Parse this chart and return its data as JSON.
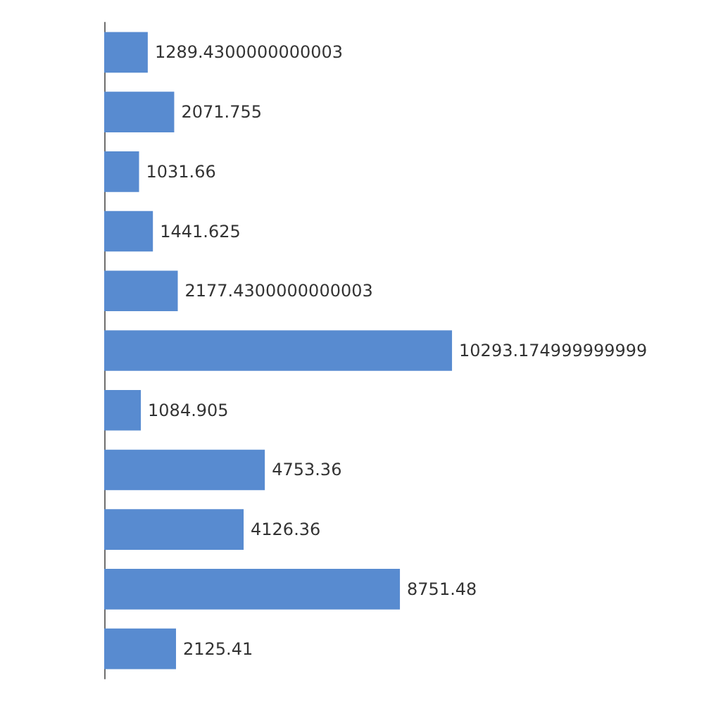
{
  "chart_data": {
    "type": "bar",
    "orientation": "horizontal",
    "categories": [
      null,
      null,
      null,
      null,
      null,
      null,
      null,
      null,
      null,
      null,
      null
    ],
    "values": [
      1289.4300000000003,
      2071.755,
      1031.66,
      1441.625,
      2177.4300000000003,
      10293.175,
      1084.905,
      4753.36,
      4126.36,
      8751.48,
      2125.41
    ],
    "value_labels": [
      "1289.4300000000003",
      "2071.755",
      "1031.66",
      "1441.625",
      "2177.4300000000003",
      "10293.174999999999",
      "1084.905",
      "4753.36",
      "4126.36",
      "8751.48",
      "2125.41"
    ],
    "color": "#588bd0"
  }
}
